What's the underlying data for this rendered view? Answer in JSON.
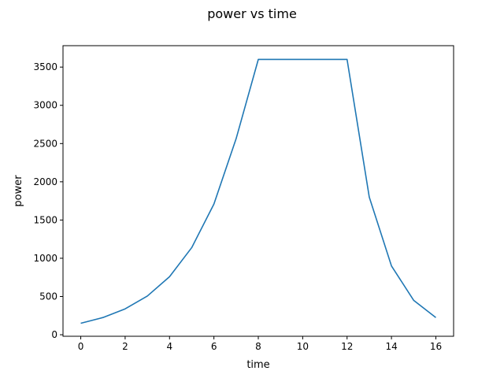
{
  "chart_data": {
    "type": "line",
    "title": "power vs time",
    "xlabel": "time",
    "ylabel": "power",
    "xlim": [
      -0.8,
      16.8
    ],
    "ylim": [
      -20,
      3780
    ],
    "x_ticks": [
      0,
      2,
      4,
      6,
      8,
      10,
      12,
      14,
      16
    ],
    "y_ticks": [
      0,
      500,
      1000,
      1500,
      2000,
      2500,
      3000,
      3500
    ],
    "grid": false,
    "series": [
      {
        "color": "#1f77b4",
        "x": [
          0,
          1,
          2,
          3,
          4,
          5,
          6,
          7,
          8,
          9,
          10,
          11,
          12,
          13,
          14,
          15,
          16
        ],
        "y": [
          150,
          225,
          338,
          506,
          759,
          1139,
          1709,
          2563,
          3600,
          3600,
          3600,
          3600,
          3600,
          1800,
          900,
          450,
          225
        ]
      }
    ]
  }
}
